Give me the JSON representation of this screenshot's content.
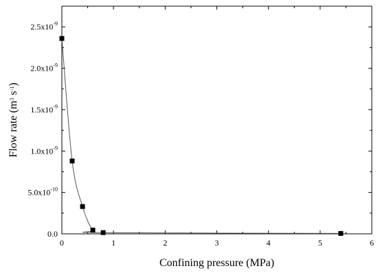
{
  "chart_data": {
    "type": "line",
    "title": "",
    "xlabel": "Confining pressure (MPa)",
    "ylabel_main": "Flow rate (m",
    "ylabel_sup1": "3",
    "ylabel_mid": " s",
    "ylabel_sup2": "-1",
    "ylabel_end": ")",
    "xlim": [
      0,
      6
    ],
    "ylim": [
      0,
      2.75e-09
    ],
    "x_ticks": [
      {
        "value": 0,
        "label": "0"
      },
      {
        "value": 1,
        "label": "1"
      },
      {
        "value": 2,
        "label": "2"
      },
      {
        "value": 3,
        "label": "3"
      },
      {
        "value": 4,
        "label": "4"
      },
      {
        "value": 5,
        "label": "5"
      },
      {
        "value": 6,
        "label": "6"
      }
    ],
    "y_ticks": [
      {
        "value": 0,
        "mantissa": "0.0",
        "exponent": ""
      },
      {
        "value": 5e-10,
        "mantissa": "5.0x10",
        "exponent": "-10"
      },
      {
        "value": 1e-09,
        "mantissa": "1.0x10",
        "exponent": "-9"
      },
      {
        "value": 1.5e-09,
        "mantissa": "1.5x10",
        "exponent": "-9"
      },
      {
        "value": 2e-09,
        "mantissa": "2.0x10",
        "exponent": "-9"
      },
      {
        "value": 2.5e-09,
        "mantissa": "2.5x10",
        "exponent": "-9"
      }
    ],
    "grid": false,
    "legend": "none",
    "marker": "square",
    "series": [
      {
        "x": [
          0,
          0.2,
          0.4,
          0.6,
          0.8,
          5.4
        ],
        "values": [
          2.36e-09,
          8.8e-10,
          3.3e-10,
          4.5e-11,
          1.5e-11,
          5e-12
        ]
      }
    ],
    "colors": {
      "line": "#555555",
      "marker": "#000000",
      "axis": "#000000"
    }
  }
}
